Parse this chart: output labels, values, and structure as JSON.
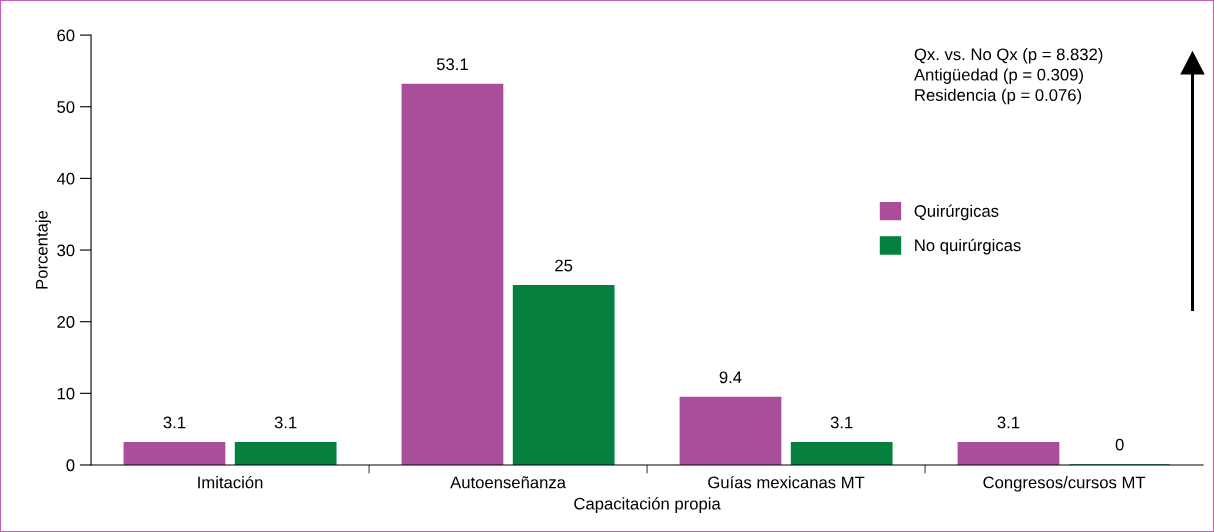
{
  "chart_data": {
    "type": "bar",
    "xlabel": "Capacitación propia",
    "ylabel": "Porcentaje",
    "categories": [
      "Imitación",
      "Autoenseñanza",
      "Guías mexicanas MT",
      "Congresos/cursos MT"
    ],
    "series": [
      {
        "name": "Quirúrgicas",
        "color": "#aa4e9c",
        "values": [
          3.1,
          53.1,
          9.4,
          3.1
        ]
      },
      {
        "name": "No quirúrgicas",
        "color": "#05803f",
        "values": [
          3.1,
          25,
          3.1,
          0
        ]
      }
    ],
    "ylim": [
      0,
      60
    ],
    "yticks": [
      0,
      10,
      20,
      30,
      40,
      50,
      60
    ],
    "data_labels": true,
    "grid": false,
    "legend": "right",
    "annotations": [
      "Qx. vs. No Qx (p = 8.832)\nAntigüedad (p = 0.309)\nResidencia (p = 0.076)"
    ]
  }
}
